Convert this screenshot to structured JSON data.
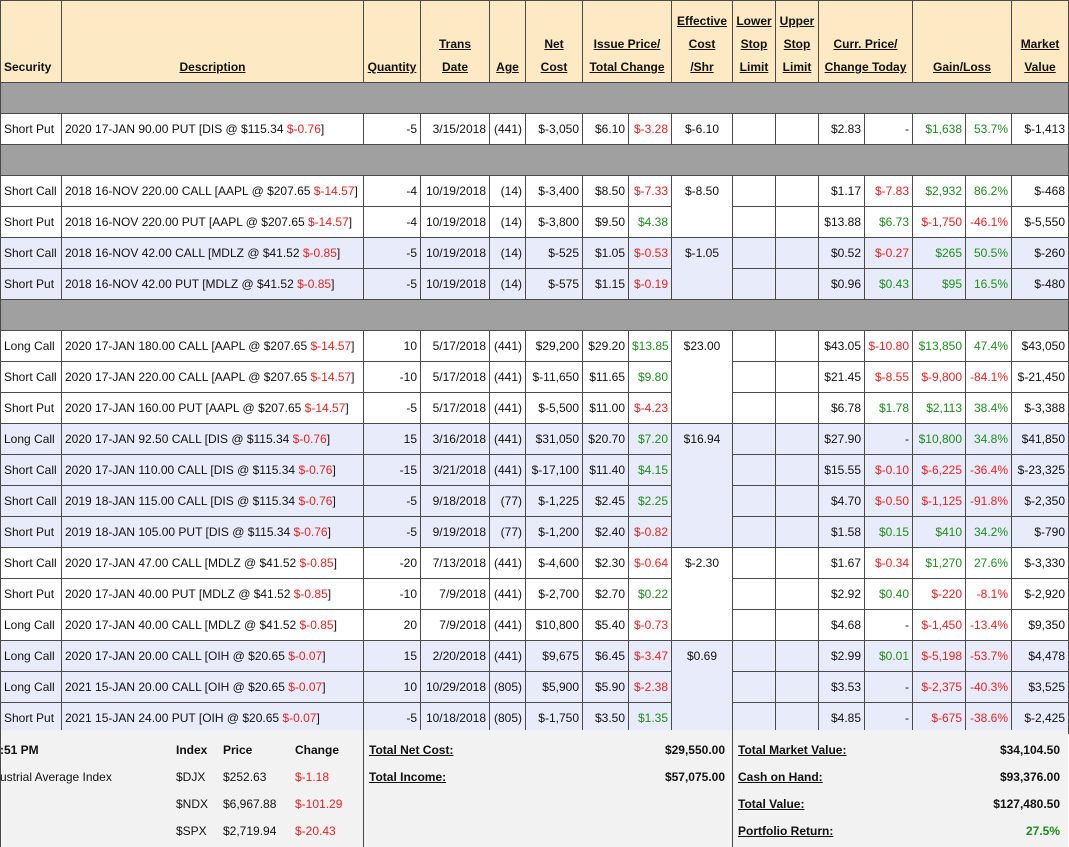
{
  "colors": {
    "positive": "#1e8c1e",
    "negative": "#e52222",
    "shade": "#e8ecfa"
  },
  "header": [
    [
      "Security"
    ],
    [
      "Description"
    ],
    [
      "Quantity"
    ],
    [
      "Trans",
      "Date"
    ],
    [
      "Age"
    ],
    [
      "Net",
      "Cost"
    ],
    [
      "Issue Price/",
      "Total Change"
    ],
    [
      "Effective",
      "Cost",
      "/Shr"
    ],
    [
      "Lower",
      "Stop",
      "Limit"
    ],
    [
      "Upper",
      "Stop",
      "Limit"
    ],
    [
      "Curr. Price/",
      "Change Today"
    ],
    [
      "Gain/Loss"
    ],
    [
      "Market",
      "Value"
    ]
  ],
  "sections": [
    {
      "groups": [
        {
          "effective_cost": "$-6.10",
          "shaded": false,
          "rows": [
            [
              "Short Put",
              "2020 17-JAN 90.00 PUT [DIS @ $115.34 ",
              "$-0.76",
              "]",
              "-5",
              "3/15/2018",
              "(441)",
              "$-3,050",
              "$6.10",
              "$-3.28",
              "$2.83",
              "-",
              "$1,638",
              "53.7%",
              "$-1,413"
            ]
          ]
        }
      ]
    },
    {
      "groups": [
        {
          "effective_cost": "$-8.50",
          "shaded": false,
          "rows": [
            [
              "Short Call",
              "2018 16-NOV 220.00 CALL [AAPL @ $207.65 ",
              "$-14.57",
              "]",
              "-4",
              "10/19/2018",
              "(14)",
              "$-3,400",
              "$8.50",
              "$-7.33",
              "$1.17",
              "$-7.83",
              "$2,932",
              "86.2%",
              "$-468"
            ],
            [
              "Short Put",
              "2018 16-NOV 220.00 PUT [AAPL @ $207.65 ",
              "$-14.57",
              "]",
              "-4",
              "10/19/2018",
              "(14)",
              "$-3,800",
              "$9.50",
              "$4.38",
              "$13.88",
              "$6.73",
              "$-1,750",
              "-46.1%",
              "$-5,550"
            ]
          ]
        },
        {
          "effective_cost": "$-1.05",
          "shaded": true,
          "rows": [
            [
              "Short Call",
              "2018 16-NOV 42.00 CALL [MDLZ @ $41.52 ",
              "$-0.85",
              "]",
              "-5",
              "10/19/2018",
              "(14)",
              "$-525",
              "$1.05",
              "$-0.53",
              "$0.52",
              "$-0.27",
              "$265",
              "50.5%",
              "$-260"
            ],
            [
              "Short Put",
              "2018 16-NOV 42.00 PUT [MDLZ @ $41.52 ",
              "$-0.85",
              "]",
              "-5",
              "10/19/2018",
              "(14)",
              "$-575",
              "$1.15",
              "$-0.19",
              "$0.96",
              "$0.43",
              "$95",
              "16.5%",
              "$-480"
            ]
          ]
        }
      ]
    },
    {
      "groups": [
        {
          "effective_cost": "$23.00",
          "shaded": false,
          "rows": [
            [
              "Long Call",
              "2020 17-JAN 180.00 CALL [AAPL @ $207.65 ",
              "$-14.57",
              "]",
              "10",
              "5/17/2018",
              "(441)",
              "$29,200",
              "$29.20",
              "$13.85",
              "$43.05",
              "$-10.80",
              "$13,850",
              "47.4%",
              "$43,050"
            ],
            [
              "Short Call",
              "2020 17-JAN 220.00 CALL [AAPL @ $207.65 ",
              "$-14.57",
              "]",
              "-10",
              "5/17/2018",
              "(441)",
              "$-11,650",
              "$11.65",
              "$9.80",
              "$21.45",
              "$-8.55",
              "$-9,800",
              "-84.1%",
              "$-21,450"
            ],
            [
              "Short Put",
              "2020 17-JAN 160.00 PUT [AAPL @ $207.65 ",
              "$-14.57",
              "]",
              "-5",
              "5/17/2018",
              "(441)",
              "$-5,500",
              "$11.00",
              "$-4.23",
              "$6.78",
              "$1.78",
              "$2,113",
              "38.4%",
              "$-3,388"
            ]
          ]
        },
        {
          "effective_cost": "$16.94",
          "shaded": true,
          "rows": [
            [
              "Long Call",
              "2020 17-JAN 92.50 CALL [DIS @ $115.34 ",
              "$-0.76",
              "]",
              "15",
              "3/16/2018",
              "(441)",
              "$31,050",
              "$20.70",
              "$7.20",
              "$27.90",
              "-",
              "$10,800",
              "34.8%",
              "$41,850"
            ],
            [
              "Short Call",
              "2020 17-JAN 110.00 CALL [DIS @ $115.34 ",
              "$-0.76",
              "]",
              "-15",
              "3/21/2018",
              "(441)",
              "$-17,100",
              "$11.40",
              "$4.15",
              "$15.55",
              "$-0.10",
              "$-6,225",
              "-36.4%",
              "$-23,325"
            ],
            [
              "Short Call",
              "2019 18-JAN 115.00 CALL [DIS @ $115.34 ",
              "$-0.76",
              "]",
              "-5",
              "9/18/2018",
              "(77)",
              "$-1,225",
              "$2.45",
              "$2.25",
              "$4.70",
              "$-0.50",
              "$-1,125",
              "-91.8%",
              "$-2,350"
            ],
            [
              "Short Put",
              "2019 18-JAN 105.00 PUT [DIS @ $115.34 ",
              "$-0.76",
              "]",
              "-5",
              "9/19/2018",
              "(77)",
              "$-1,200",
              "$2.40",
              "$-0.82",
              "$1.58",
              "$0.15",
              "$410",
              "34.2%",
              "$-790"
            ]
          ]
        },
        {
          "effective_cost": "$-2.30",
          "shaded": false,
          "rows": [
            [
              "Short Call",
              "2020 17-JAN 47.00 CALL [MDLZ @ $41.52 ",
              "$-0.85",
              "]",
              "-20",
              "7/13/2018",
              "(441)",
              "$-4,600",
              "$2.30",
              "$-0.64",
              "$1.67",
              "$-0.34",
              "$1,270",
              "27.6%",
              "$-3,330"
            ],
            [
              "Short Put",
              "2020 17-JAN 40.00 PUT [MDLZ @ $41.52 ",
              "$-0.85",
              "]",
              "-10",
              "7/9/2018",
              "(441)",
              "$-2,700",
              "$2.70",
              "$0.22",
              "$2.92",
              "$0.40",
              "$-220",
              "-8.1%",
              "$-2,920"
            ],
            [
              "Long Call",
              "2020 17-JAN 40.00 CALL [MDLZ @ $41.52 ",
              "$-0.85",
              "]",
              "20",
              "7/9/2018",
              "(441)",
              "$10,800",
              "$5.40",
              "$-0.73",
              "$4.68",
              "-",
              "$-1,450",
              "-13.4%",
              "$9,350"
            ]
          ]
        },
        {
          "effective_cost": "$0.69",
          "shaded": true,
          "rows": [
            [
              "Long Call",
              "2020 17-JAN 20.00 CALL [OIH @ $20.65 ",
              "$-0.07",
              "]",
              "15",
              "2/20/2018",
              "(441)",
              "$9,675",
              "$6.45",
              "$-3.47",
              "$2.99",
              "$0.01",
              "$-5,198",
              "-53.7%",
              "$4,478"
            ],
            [
              "Long Call",
              "2021 15-JAN 20.00 CALL [OIH @ $20.65 ",
              "$-0.07",
              "]",
              "10",
              "10/29/2018",
              "(805)",
              "$5,900",
              "$5.90",
              "$-2.38",
              "$3.53",
              "-",
              "$-2,375",
              "-40.3%",
              "$3,525"
            ],
            [
              "Short Put",
              "2021 15-JAN 24.00 PUT [OIH @ $20.65 ",
              "$-0.07",
              "]",
              "-5",
              "10/18/2018",
              "(805)",
              "$-1,750",
              "$3.50",
              "$1.35",
              "$4.85",
              "-",
              "$-675",
              "-38.6%",
              "$-2,425"
            ]
          ]
        }
      ]
    }
  ],
  "footer": {
    "time": ":51 PM",
    "index_name": "ustrial Average Index",
    "index_header": [
      "Index",
      "Price",
      "Change"
    ],
    "indices": [
      [
        "$DJX",
        "$252.63",
        "$-1.18"
      ],
      [
        "$NDX",
        "$6,967.88",
        "$-101.29"
      ],
      [
        "$SPX",
        "$2,719.94",
        "$-20.43"
      ]
    ],
    "totals_left": [
      [
        "Total Net Cost:",
        "$29,550.00"
      ],
      [
        "Total Income:",
        "$57,075.00"
      ]
    ],
    "totals_right": [
      [
        "Total Market Value:",
        "$34,104.50"
      ],
      [
        "Cash on Hand:",
        "$93,376.00"
      ],
      [
        "Total Value:",
        "$127,480.50"
      ],
      [
        "Portfolio Return:",
        "27.5%"
      ]
    ]
  }
}
